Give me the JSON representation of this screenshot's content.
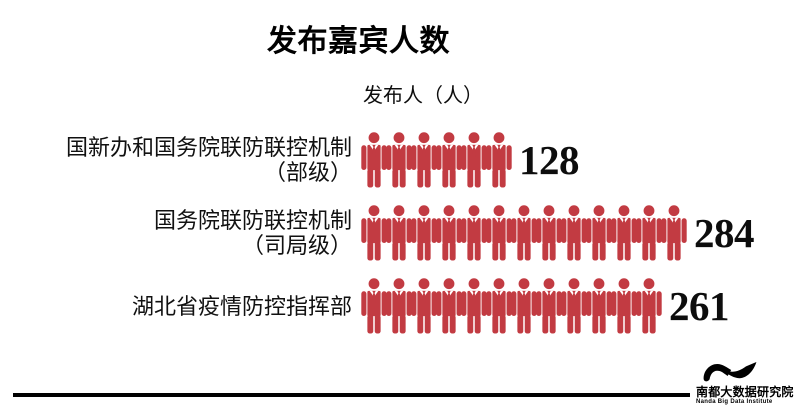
{
  "title": "发布嘉宾人数",
  "subtitle": "发布人（人）",
  "chart_data": {
    "type": "pictogram-bar",
    "title": "发布嘉宾人数",
    "unit_label": "发布人（人）",
    "orientation": "horizontal",
    "categories": [
      "国新办和国务院联防联控机制（部级）",
      "国务院联防联控机制（司局级）",
      "湖北省疫情防控指挥部"
    ],
    "values": [
      128,
      284,
      261
    ],
    "icon_counts": [
      6,
      13,
      12
    ],
    "icon": "person-with-tie",
    "icon_color": "#c23b42",
    "value_labels_shown": true,
    "grid": false,
    "legend": false
  },
  "rows": [
    {
      "label_line1": "国新办和国务院联防联控机制",
      "label_line2": "（部级）",
      "value": "128",
      "icons": 6
    },
    {
      "label_line1": "国务院联防联控机制",
      "label_line2": "（司局级）",
      "value": "284",
      "icons": 13
    },
    {
      "label_line1": "湖北省疫情防控指挥部",
      "label_line2": "",
      "value": "261",
      "icons": 12
    }
  ],
  "footer": {
    "logo_text_cn": "南都大数据研究院",
    "logo_text_en": "Nanda Big Data Institute"
  },
  "colors": {
    "icon_red": "#c23b42",
    "text": "#000000",
    "divider": "#000000",
    "background": "#ffffff"
  }
}
